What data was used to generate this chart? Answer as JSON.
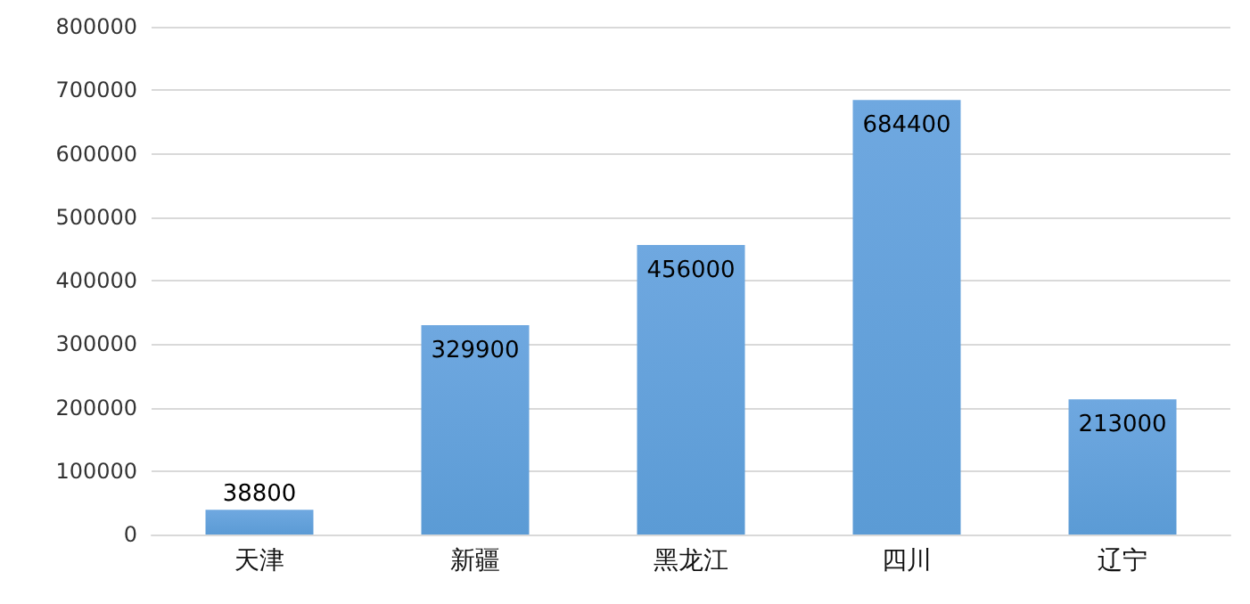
{
  "chart_data": {
    "type": "bar",
    "categories": [
      "天津",
      "新疆",
      "黑龙江",
      "四川",
      "辽宁"
    ],
    "values": [
      38800,
      329900,
      456000,
      684400,
      213000
    ],
    "color": "#5b9bd5",
    "ylim": [
      0,
      800000
    ],
    "yticks": [
      0,
      100000,
      200000,
      300000,
      400000,
      500000,
      600000,
      700000,
      800000
    ],
    "grid": "y",
    "data_labels": true
  }
}
